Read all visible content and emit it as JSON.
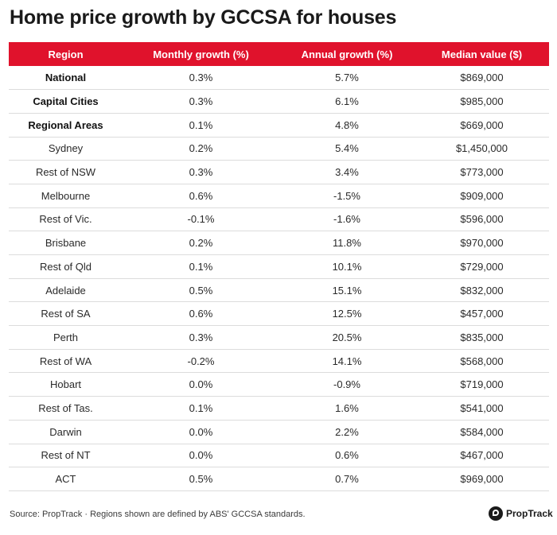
{
  "title": "Home price growth by GCCSA for houses",
  "chart_data": {
    "type": "table",
    "title": "Home price growth by GCCSA for houses",
    "columns": [
      "Region",
      "Monthly growth (%)",
      "Annual growth (%)",
      "Median value ($)"
    ],
    "header_color": "#e0122c",
    "rows": [
      {
        "region": "National",
        "monthly": "0.3%",
        "annual": "5.7%",
        "median": "$869,000",
        "bold": true
      },
      {
        "region": "Capital Cities",
        "monthly": "0.3%",
        "annual": "6.1%",
        "median": "$985,000",
        "bold": true
      },
      {
        "region": "Regional Areas",
        "monthly": "0.1%",
        "annual": "4.8%",
        "median": "$669,000",
        "bold": true
      },
      {
        "region": "Sydney",
        "monthly": "0.2%",
        "annual": "5.4%",
        "median": "$1,450,000",
        "bold": false
      },
      {
        "region": "Rest of NSW",
        "monthly": "0.3%",
        "annual": "3.4%",
        "median": "$773,000",
        "bold": false
      },
      {
        "region": "Melbourne",
        "monthly": "0.6%",
        "annual": "-1.5%",
        "median": "$909,000",
        "bold": false
      },
      {
        "region": "Rest of Vic.",
        "monthly": "-0.1%",
        "annual": "-1.6%",
        "median": "$596,000",
        "bold": false
      },
      {
        "region": "Brisbane",
        "monthly": "0.2%",
        "annual": "11.8%",
        "median": "$970,000",
        "bold": false
      },
      {
        "region": "Rest of Qld",
        "monthly": "0.1%",
        "annual": "10.1%",
        "median": "$729,000",
        "bold": false
      },
      {
        "region": "Adelaide",
        "monthly": "0.5%",
        "annual": "15.1%",
        "median": "$832,000",
        "bold": false
      },
      {
        "region": "Rest of SA",
        "monthly": "0.6%",
        "annual": "12.5%",
        "median": "$457,000",
        "bold": false
      },
      {
        "region": "Perth",
        "monthly": "0.3%",
        "annual": "20.5%",
        "median": "$835,000",
        "bold": false
      },
      {
        "region": "Rest of WA",
        "monthly": "-0.2%",
        "annual": "14.1%",
        "median": "$568,000",
        "bold": false
      },
      {
        "region": "Hobart",
        "monthly": "0.0%",
        "annual": "-0.9%",
        "median": "$719,000",
        "bold": false
      },
      {
        "region": "Rest of Tas.",
        "monthly": "0.1%",
        "annual": "1.6%",
        "median": "$541,000",
        "bold": false
      },
      {
        "region": "Darwin",
        "monthly": "0.0%",
        "annual": "2.2%",
        "median": "$584,000",
        "bold": false
      },
      {
        "region": "Rest of NT",
        "monthly": "0.0%",
        "annual": "0.6%",
        "median": "$467,000",
        "bold": false
      },
      {
        "region": "ACT",
        "monthly": "0.5%",
        "annual": "0.7%",
        "median": "$969,000",
        "bold": false
      }
    ]
  },
  "footer": {
    "source": "Source: PropTrack · Regions shown are defined by ABS' GCCSA standards.",
    "brand": "PropTrack",
    "brand_icon": "proptrack-logo-icon"
  }
}
